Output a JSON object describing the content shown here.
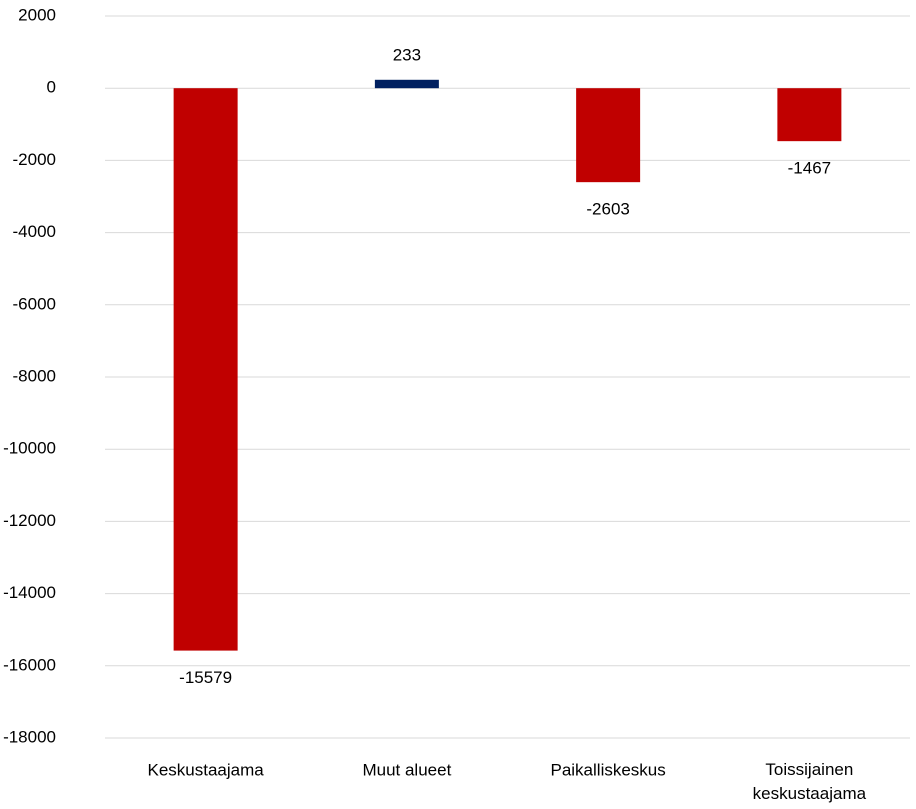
{
  "chart_data": {
    "type": "bar",
    "categories": [
      "Keskustaajama",
      "Muut alueet",
      "Paikalliskeskus",
      "Toissijainen keskustaajama"
    ],
    "values": [
      -15579,
      233,
      -2603,
      -1467
    ],
    "colors": [
      "#c00000",
      "#002060",
      "#c00000",
      "#c00000"
    ],
    "ylim": [
      -18000,
      2000
    ],
    "yticks": [
      -18000,
      -16000,
      -14000,
      -12000,
      -10000,
      -8000,
      -6000,
      -4000,
      -2000,
      0,
      2000
    ],
    "grid": true
  }
}
